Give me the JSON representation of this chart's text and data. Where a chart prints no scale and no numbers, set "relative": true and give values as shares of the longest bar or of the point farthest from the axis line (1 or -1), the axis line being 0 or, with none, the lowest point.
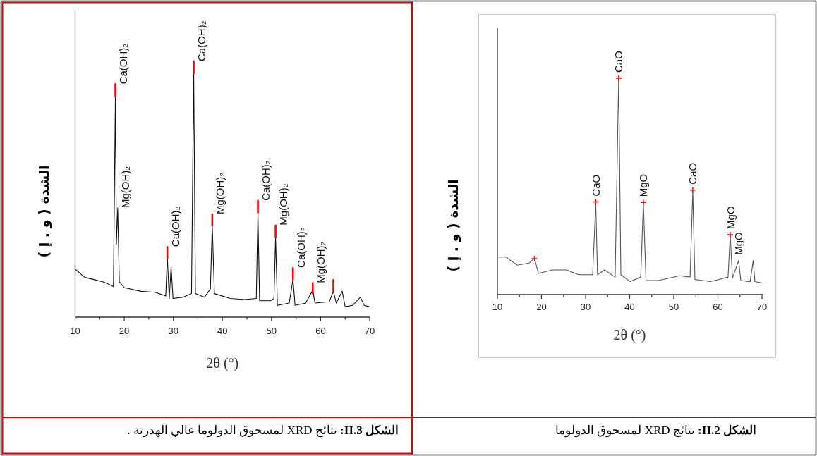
{
  "chart_data": [
    {
      "type": "line",
      "relative": true,
      "xlabel": "2θ (°)",
      "ylabel": "الشدة ( و . إ )",
      "xlim": [
        10,
        70
      ],
      "xticks": [
        10,
        {
          "value": 15,
          "label": null
        },
        20,
        {
          "value": 25,
          "label": null
        },
        30,
        {
          "value": 35,
          "label": null
        },
        40,
        {
          "value": 45,
          "label": null
        },
        50,
        {
          "value": 55,
          "label": null
        },
        60,
        {
          "value": 65,
          "label": null
        },
        70
      ],
      "series": [
        {
          "color": "#555555",
          "x": [
            10,
            11.9,
            14.5,
            17.2,
            18.4,
            19.3,
            22.5,
            25.7,
            28.4,
            31.6,
            32.3,
            32.7,
            34.3,
            36.7,
            37.5,
            38.0,
            40.1,
            42.5,
            43.1,
            43.7,
            46.5,
            51.3,
            53.7,
            54.3,
            54.8,
            58.3,
            62.3,
            62.8,
            63.3,
            64.7,
            65.2,
            67.3,
            68.0,
            68.4,
            70.0
          ],
          "values": [
            0.174,
            0.174,
            0.136,
            0.146,
            0.168,
            0.098,
            0.114,
            0.114,
            0.092,
            0.092,
            0.423,
            0.092,
            0.114,
            0.081,
            0.998,
            0.092,
            0.06,
            0.081,
            0.423,
            0.065,
            0.065,
            0.087,
            0.081,
            0.477,
            0.07,
            0.06,
            0.081,
            0.277,
            0.076,
            0.157,
            0.065,
            0.06,
            0.157,
            0.06,
            0.054
          ]
        },
        {
          "type": "scatter",
          "color": "#ff0000",
          "marker": "cross",
          "x": [
            18.4,
            32.3,
            37.5,
            43.1,
            54.3,
            62.8
          ],
          "values": [
            0.166,
            0.428,
            1.0,
            0.426,
            0.483,
            0.277
          ]
        }
      ],
      "annotations": [
        {
          "text": "CaO",
          "x": 32.3,
          "y": 0.428
        },
        {
          "text": "CaO",
          "x": 37.5,
          "y": 1.0
        },
        {
          "text": "MgO",
          "x": 43.1,
          "y": 0.426
        },
        {
          "text": "CaO",
          "x": 54.3,
          "y": 0.483
        },
        {
          "text": "MgO",
          "x": 62.8,
          "y": 0.277
        },
        {
          "text": "MgO",
          "x": 64.7,
          "y": 0.157
        },
        "الشكل 2.II: نتائج XRD لمسحوق الدولوما"
      ]
    },
    {
      "type": "line",
      "relative": true,
      "xlabel": "2θ (°)",
      "ylabel": "الشدة ( و . إ )",
      "xlim": [
        10,
        70
      ],
      "xticks": [
        10,
        {
          "value": 15,
          "label": null
        },
        20,
        {
          "value": 25,
          "label": null
        },
        30,
        {
          "value": 35,
          "label": null
        },
        40,
        {
          "value": 45,
          "label": null
        },
        50,
        {
          "value": 55,
          "label": null
        },
        60,
        {
          "value": 65,
          "label": null
        },
        70
      ],
      "series": [
        {
          "color": "#111111",
          "x": [
            10.0,
            11.9,
            13.8,
            15.75,
            17.4,
            17.8,
            18.2,
            18.4,
            18.67,
            19.0,
            20.06,
            23.4,
            26.3,
            28.45,
            28.78,
            29.17,
            29.55,
            29.93,
            32.0,
            33.7,
            34.15,
            34.5,
            36.35,
            37.55,
            37.93,
            38.37,
            41.6,
            44.5,
            46.9,
            47.23,
            47.57,
            49.77,
            50.5,
            50.83,
            51.2,
            53.6,
            54.37,
            54.8,
            56.96,
            58.4,
            58.87,
            61.75,
            62.6,
            63.2,
            64.4,
            65.0,
            66.5,
            68.1,
            68.9,
            69.9
          ],
          "values": [
            0.188,
            0.156,
            0.147,
            0.138,
            0.124,
            0.119,
            0.863,
            0.285,
            0.427,
            0.138,
            0.115,
            0.101,
            0.097,
            0.083,
            0.234,
            0.073,
            0.197,
            0.073,
            0.078,
            0.092,
            0.955,
            0.092,
            0.078,
            0.11,
            0.358,
            0.092,
            0.073,
            0.069,
            0.073,
            0.409,
            0.064,
            0.064,
            0.073,
            0.313,
            0.046,
            0.055,
            0.147,
            0.046,
            0.055,
            0.105,
            0.055,
            0.06,
            0.101,
            0.055,
            0.101,
            0.041,
            0.046,
            0.078,
            0.046,
            0.041
          ]
        },
        {
          "color": "#ff0000",
          "x": [
            18.2,
            18.2,
            null,
            28.78,
            28.78,
            null,
            34.15,
            34.15,
            null,
            37.93,
            37.93,
            null,
            47.23,
            47.23,
            null,
            50.83,
            50.83,
            null,
            54.37,
            54.37,
            null,
            58.4,
            58.4,
            null,
            62.6,
            62.6
          ],
          "values": [
            0.863,
            0.911,
            null,
            0.229,
            0.275,
            null,
            0.953,
            1.0,
            null,
            0.358,
            0.402,
            null,
            0.409,
            0.455,
            null,
            0.313,
            0.359,
            null,
            0.147,
            0.193,
            null,
            0.092,
            0.133,
            null,
            0.101,
            0.145
          ]
        }
      ],
      "annotations": [
        {
          "text": "Ca(OH)₂",
          "x": 18.2,
          "y": 0.911
        },
        {
          "text": "Mg(OH)₂",
          "x": 18.67,
          "y": 0.427
        },
        {
          "text": "Ca(OH)₂",
          "x": 28.78,
          "y": 0.275
        },
        {
          "text": "Ca(OH)₂",
          "x": 34.15,
          "y": 1.0
        },
        {
          "text": "Mg(OH)₂",
          "x": 37.93,
          "y": 0.402
        },
        {
          "text": "Ca(OH)₂",
          "x": 47.23,
          "y": 0.455
        },
        {
          "text": "Mg(OH)₂",
          "x": 50.83,
          "y": 0.359
        },
        {
          "text": "Ca(OH)₂",
          "x": 54.37,
          "y": 0.193
        },
        {
          "text": "Mg(OH)₂",
          "x": 58.4,
          "y": 0.133
        },
        "الشكل 3.II: نتائج XRD لمسحوق الدولوما عالي الهدرتة ."
      ]
    }
  ]
}
